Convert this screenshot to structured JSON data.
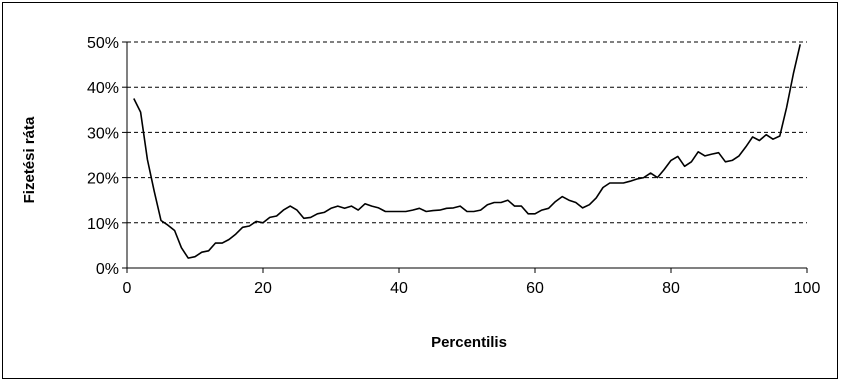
{
  "chart_data": {
    "type": "line",
    "title": "",
    "xlabel": "Percentilis",
    "ylabel": "Fizetési ráta",
    "xlim": [
      0,
      100
    ],
    "ylim": [
      0,
      0.5
    ],
    "x_ticks": [
      "0",
      "20",
      "40",
      "60",
      "80",
      "100"
    ],
    "y_ticks": [
      "0%",
      "10%",
      "20%",
      "30%",
      "40%",
      "50%"
    ],
    "grid": "horizontal-dashed",
    "legend": "none",
    "line_color": "#000000",
    "series": [
      {
        "x": [
          1,
          2,
          3,
          4,
          5,
          6,
          7,
          8,
          9,
          10,
          11,
          12,
          13,
          14,
          15,
          16,
          17,
          18,
          19,
          20,
          21,
          22,
          23,
          24,
          25,
          26,
          27,
          28,
          29,
          30,
          31,
          32,
          33,
          34,
          35,
          36,
          37,
          38,
          39,
          40,
          41,
          42,
          43,
          44,
          45,
          46,
          47,
          48,
          49,
          50,
          51,
          52,
          53,
          54,
          55,
          56,
          57,
          58,
          59,
          60,
          61,
          62,
          63,
          64,
          65,
          66,
          67,
          68,
          69,
          70,
          71,
          72,
          73,
          74,
          75,
          76,
          77,
          78,
          79,
          80,
          81,
          82,
          83,
          84,
          85,
          86,
          87,
          88,
          89,
          90,
          91,
          92,
          93,
          94,
          95,
          96,
          97,
          98,
          99
        ],
        "values": [
          0.375,
          0.345,
          0.24,
          0.17,
          0.105,
          0.095,
          0.083,
          0.045,
          0.022,
          0.025,
          0.035,
          0.038,
          0.055,
          0.055,
          0.063,
          0.075,
          0.09,
          0.093,
          0.103,
          0.1,
          0.112,
          0.115,
          0.128,
          0.137,
          0.128,
          0.11,
          0.112,
          0.12,
          0.123,
          0.132,
          0.137,
          0.132,
          0.137,
          0.128,
          0.142,
          0.137,
          0.133,
          0.125,
          0.125,
          0.125,
          0.125,
          0.128,
          0.132,
          0.125,
          0.127,
          0.128,
          0.132,
          0.133,
          0.137,
          0.125,
          0.125,
          0.128,
          0.14,
          0.145,
          0.145,
          0.15,
          0.137,
          0.137,
          0.12,
          0.12,
          0.128,
          0.132,
          0.147,
          0.158,
          0.15,
          0.145,
          0.133,
          0.14,
          0.155,
          0.178,
          0.188,
          0.188,
          0.188,
          0.192,
          0.197,
          0.2,
          0.21,
          0.2,
          0.218,
          0.238,
          0.247,
          0.225,
          0.235,
          0.257,
          0.248,
          0.252,
          0.255,
          0.235,
          0.238,
          0.248,
          0.268,
          0.29,
          0.282,
          0.295,
          0.285,
          0.292,
          0.355,
          0.43,
          0.495
        ]
      }
    ]
  }
}
